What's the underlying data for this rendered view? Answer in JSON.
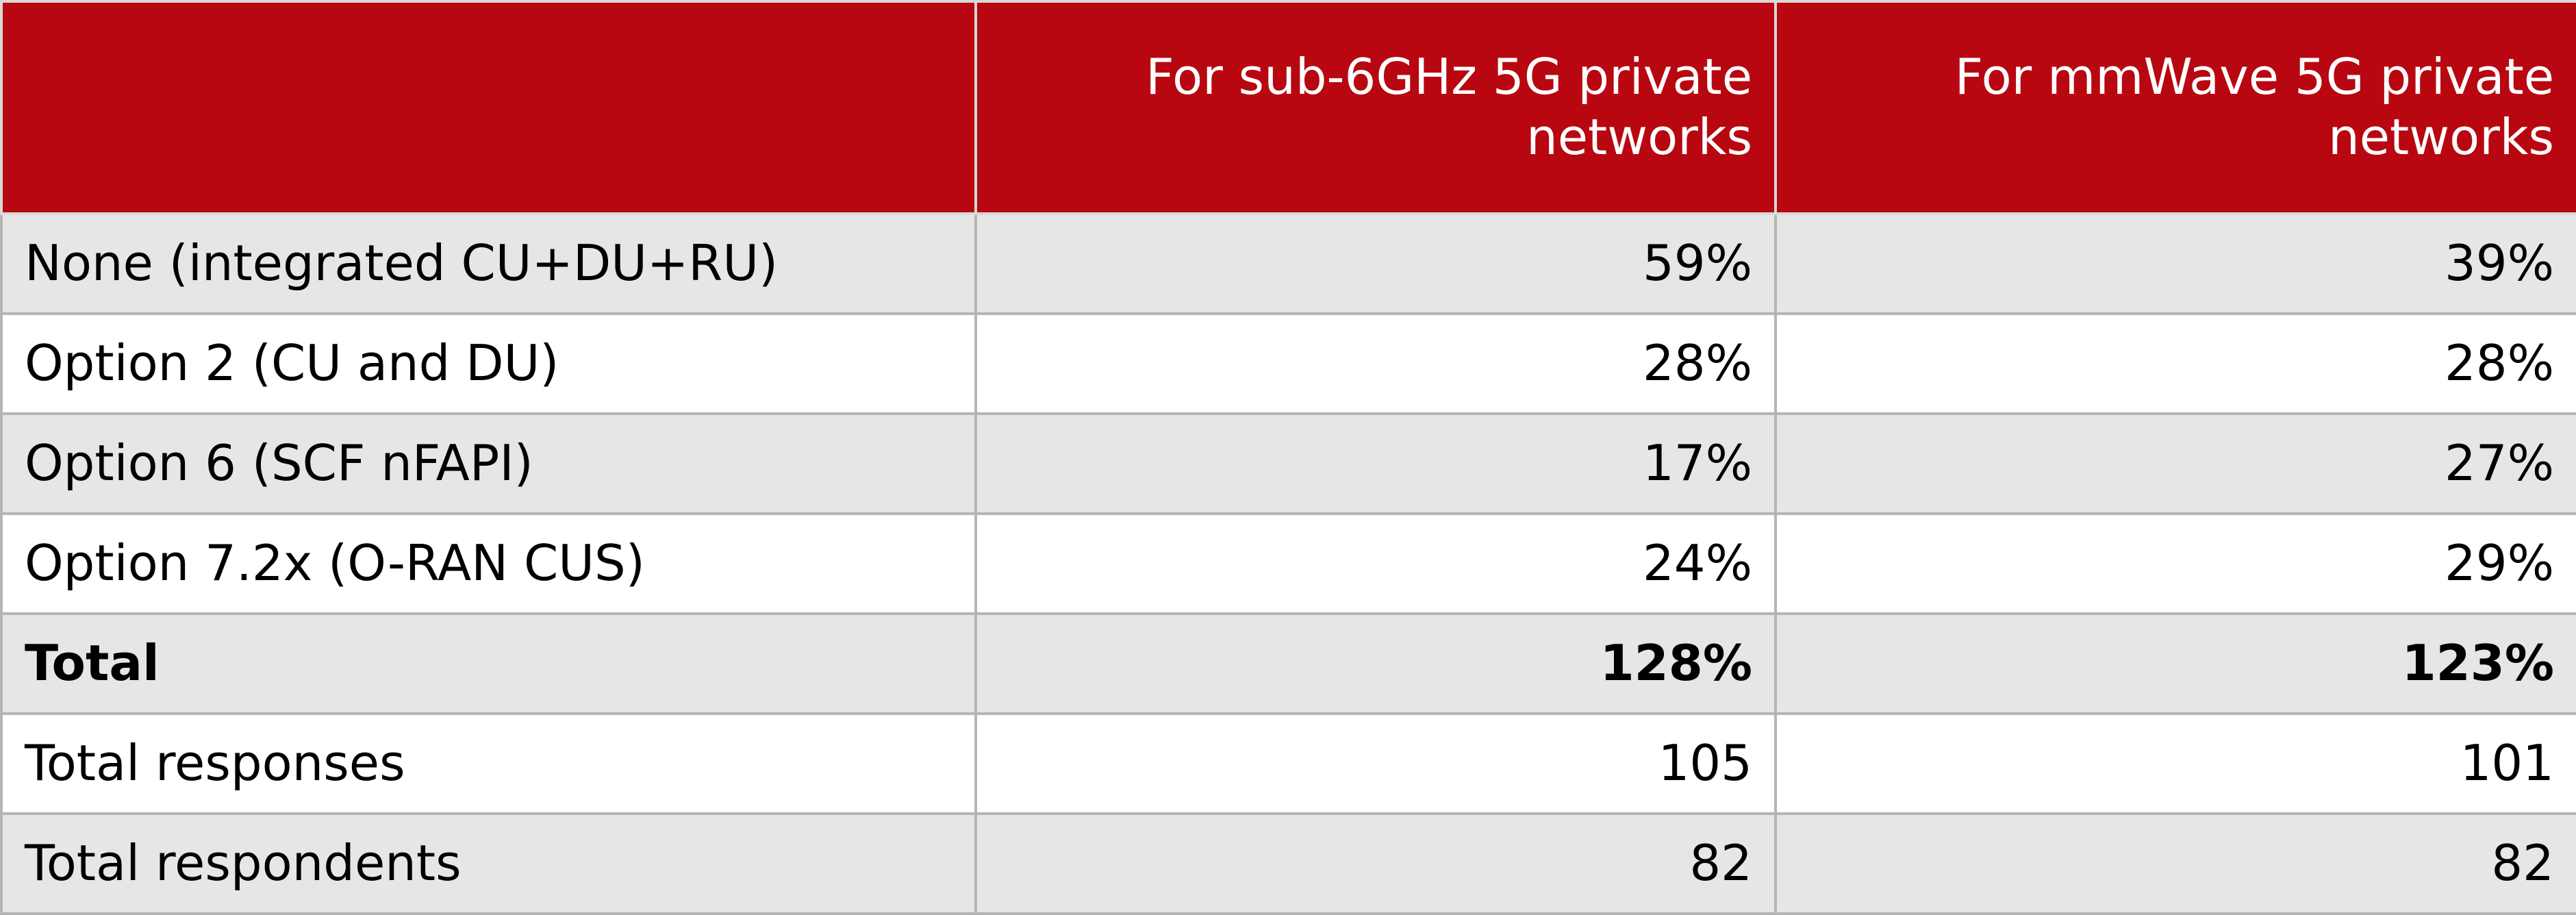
{
  "table": {
    "columns": [
      "For sub-6GHz 5G private networks",
      "For mmWave 5G private networks"
    ],
    "rows": [
      [
        "None (integrated CU+DU+RU)",
        "59%",
        "39%"
      ],
      [
        "Option 2 (CU and DU)",
        "28%",
        "28%"
      ],
      [
        "Option 6 (SCF nFAPI)",
        "17%",
        "27%"
      ],
      [
        "Option 7.2x (O-RAN CUS)",
        "24%",
        "29%"
      ],
      [
        "Total",
        "128%",
        "123%"
      ],
      [
        "Total responses",
        "105",
        "101"
      ],
      [
        "Total respondents",
        "82",
        "82"
      ]
    ]
  }
}
